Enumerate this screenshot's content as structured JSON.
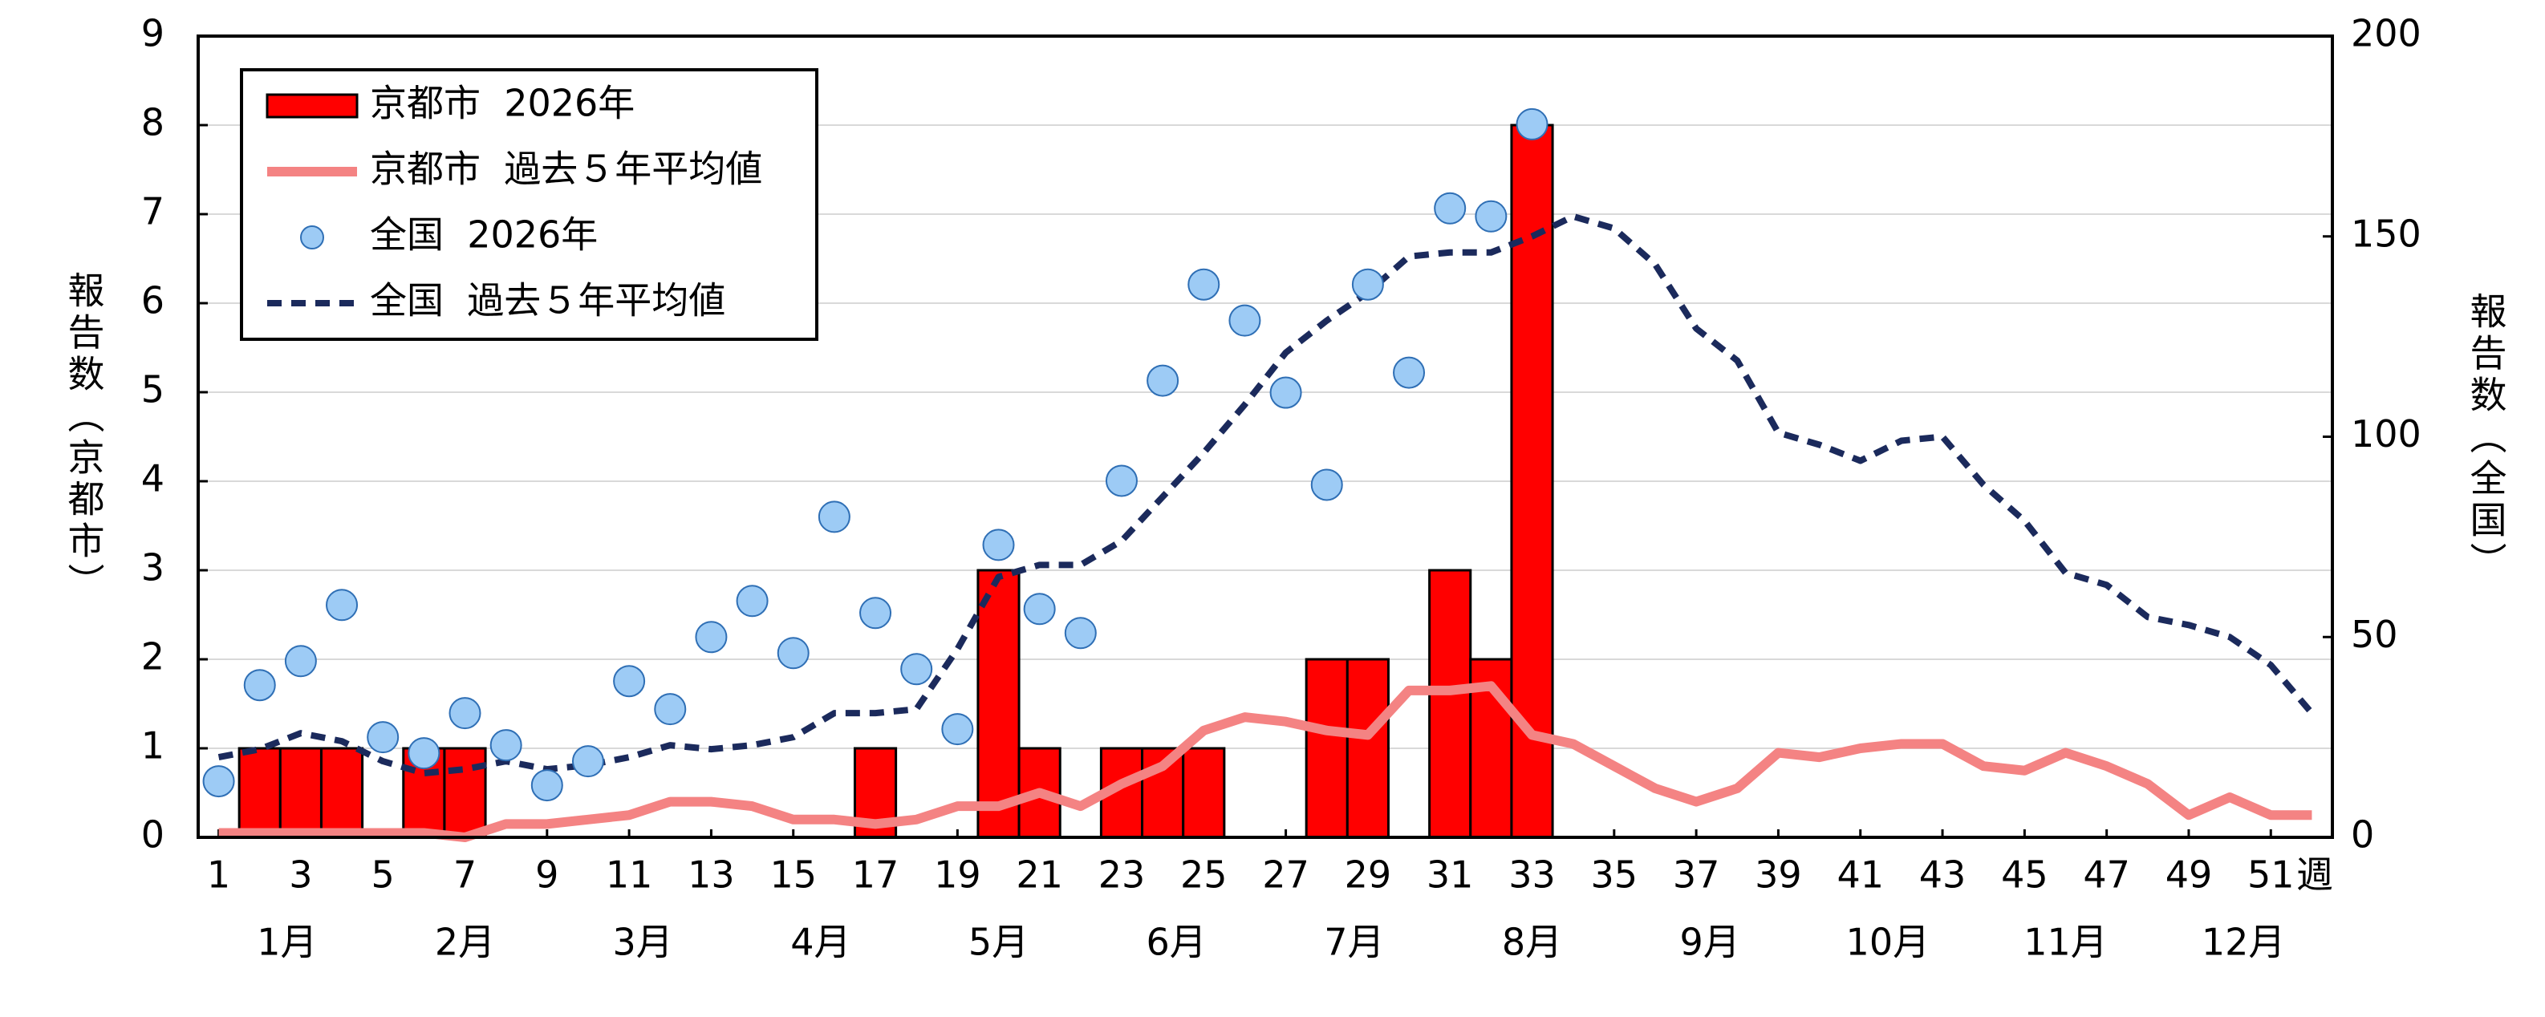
{
  "chart_data": {
    "type": "combo",
    "x": [
      1,
      2,
      3,
      4,
      5,
      6,
      7,
      8,
      9,
      10,
      11,
      12,
      13,
      14,
      15,
      16,
      17,
      18,
      19,
      20,
      21,
      22,
      23,
      24,
      25,
      26,
      27,
      28,
      29,
      30,
      31,
      32,
      33,
      34,
      35,
      36,
      37,
      38,
      39,
      40,
      41,
      42,
      43,
      44,
      45,
      46,
      47,
      48,
      49,
      50,
      51,
      52
    ],
    "xlim": [
      0.5,
      52.5
    ],
    "xticks": [
      1,
      3,
      5,
      7,
      9,
      11,
      13,
      15,
      17,
      19,
      21,
      23,
      25,
      27,
      29,
      31,
      33,
      35,
      37,
      39,
      41,
      43,
      45,
      47,
      49,
      51
    ],
    "xlabel": "週",
    "months": [
      "1月",
      "2月",
      "3月",
      "4月",
      "5月",
      "6月",
      "7月",
      "8月",
      "9月",
      "10月",
      "11月",
      "12月"
    ],
    "ylabel": "報告数（京都市）",
    "y2label": "報告数（全国）",
    "ylim": [
      0,
      9
    ],
    "yticks": [
      0,
      1,
      2,
      3,
      4,
      5,
      6,
      7,
      8,
      9
    ],
    "y2lim": [
      0,
      200
    ],
    "y2ticks": [
      0,
      50,
      100,
      150,
      200
    ],
    "grid": true,
    "legend": "top-left",
    "series": [
      {
        "name": "京都市  2026年",
        "type": "bar",
        "color": "#ff0000",
        "axis": "y",
        "values": [
          0,
          1,
          1,
          1,
          0,
          1,
          1,
          0,
          0,
          0,
          0,
          0,
          0,
          0,
          0,
          0,
          1,
          0,
          0,
          3,
          1,
          0,
          1,
          1,
          1,
          0,
          0,
          2,
          2,
          0,
          3,
          2,
          8,
          null,
          null,
          null,
          null,
          null,
          null,
          null,
          null,
          null,
          null,
          null,
          null,
          null,
          null,
          null,
          null,
          null,
          null,
          null
        ]
      },
      {
        "name": "京都市  過去５年平均値",
        "type": "line",
        "color": "#f48383",
        "axis": "y",
        "values": [
          0.05,
          0.05,
          0.05,
          0.05,
          0.05,
          0.05,
          0.0,
          0.15,
          0.15,
          0.2,
          0.25,
          0.4,
          0.4,
          0.35,
          0.2,
          0.2,
          0.15,
          0.2,
          0.35,
          0.35,
          0.5,
          0.35,
          0.6,
          0.8,
          1.2,
          1.35,
          1.3,
          1.2,
          1.15,
          1.65,
          1.65,
          1.7,
          1.15,
          1.05,
          0.8,
          0.55,
          0.4,
          0.55,
          0.95,
          0.9,
          1.0,
          1.05,
          1.05,
          0.8,
          0.75,
          0.95,
          0.8,
          0.6,
          0.25,
          0.45,
          0.25,
          0.25
        ]
      },
      {
        "name": "全国  2026年",
        "type": "scatter",
        "color": "#9dcbf5",
        "axis": "y2",
        "values": [
          14,
          38,
          44,
          58,
          25,
          21,
          31,
          23,
          13,
          19,
          39,
          32,
          50,
          59,
          46,
          80,
          56,
          42,
          27,
          73,
          57,
          51,
          89,
          114,
          138,
          129,
          111,
          88,
          138,
          116,
          157,
          155,
          178,
          null,
          null,
          null,
          null,
          null,
          null,
          null,
          null,
          null,
          null,
          null,
          null,
          null,
          null,
          null,
          null,
          null,
          null,
          null
        ]
      },
      {
        "name": "全国  過去５年平均値",
        "type": "dashed-line",
        "color": "#1b2a5c",
        "axis": "y2",
        "values": [
          20,
          22,
          26,
          24,
          19,
          16,
          17,
          19,
          17,
          18,
          20,
          23,
          22,
          23,
          25,
          31,
          31,
          32,
          47,
          65,
          68,
          68,
          74,
          85,
          96,
          108,
          121,
          129,
          136,
          145,
          146,
          146,
          150,
          155,
          152,
          143,
          127,
          119,
          101,
          98,
          94,
          99,
          100,
          88,
          79,
          66,
          63,
          55,
          53,
          50,
          43,
          31
        ]
      }
    ]
  }
}
